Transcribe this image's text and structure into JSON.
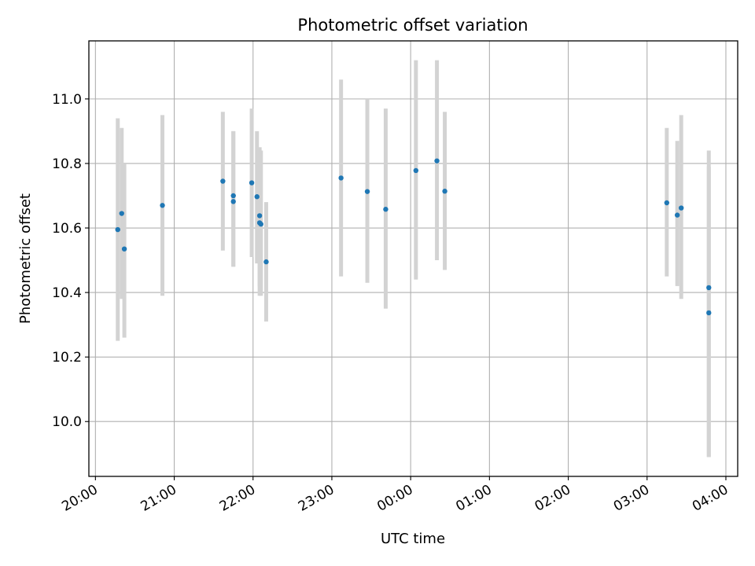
{
  "chart_data": {
    "type": "scatter",
    "title": "Photometric offset variation",
    "xlabel": "UTC time",
    "ylabel": "Photometric offset",
    "x_axis": {
      "kind": "time",
      "range": [
        "19:55",
        "04:09"
      ],
      "ticks": [
        "20:00",
        "21:00",
        "22:00",
        "23:00",
        "00:00",
        "01:00",
        "02:00",
        "03:00",
        "04:00"
      ]
    },
    "y_axis": {
      "range": [
        9.83,
        11.18
      ],
      "ticks": [
        "10.0",
        "10.2",
        "10.4",
        "10.6",
        "10.8",
        "11.0"
      ]
    },
    "grid": true,
    "colors": {
      "points": "#1f77b4",
      "errorbars": "#d3d3d3",
      "grid": "#b0b0b0"
    },
    "points": [
      {
        "x": "20:17",
        "y": 10.595,
        "ylow": 10.25,
        "yhigh": 10.94
      },
      {
        "x": "20:20",
        "y": 10.645,
        "ylow": 10.38,
        "yhigh": 10.91
      },
      {
        "x": "20:22",
        "y": 10.535,
        "ylow": 10.26,
        "yhigh": 10.8
      },
      {
        "x": "20:51",
        "y": 10.67,
        "ylow": 10.39,
        "yhigh": 10.95
      },
      {
        "x": "21:37",
        "y": 10.745,
        "ylow": 10.53,
        "yhigh": 10.96
      },
      {
        "x": "21:45",
        "y": 10.7,
        "ylow": 10.48,
        "yhigh": 10.9
      },
      {
        "x": "21:45",
        "y": 10.682,
        "ylow": 10.48,
        "yhigh": 10.9
      },
      {
        "x": "21:59",
        "y": 10.74,
        "ylow": 10.51,
        "yhigh": 10.97
      },
      {
        "x": "22:03",
        "y": 10.697,
        "ylow": 10.49,
        "yhigh": 10.9
      },
      {
        "x": "22:05",
        "y": 10.638,
        "ylow": 10.42,
        "yhigh": 10.85
      },
      {
        "x": "22:05",
        "y": 10.616,
        "ylow": 10.39,
        "yhigh": 10.85
      },
      {
        "x": "22:06",
        "y": 10.612,
        "ylow": 10.39,
        "yhigh": 10.84
      },
      {
        "x": "22:10",
        "y": 10.495,
        "ylow": 10.31,
        "yhigh": 10.68
      },
      {
        "x": "23:07",
        "y": 10.755,
        "ylow": 10.45,
        "yhigh": 11.06
      },
      {
        "x": "23:27",
        "y": 10.713,
        "ylow": 10.43,
        "yhigh": 11.0
      },
      {
        "x": "23:41",
        "y": 10.658,
        "ylow": 10.35,
        "yhigh": 10.97
      },
      {
        "x": "00:04",
        "y": 10.778,
        "ylow": 10.44,
        "yhigh": 11.12
      },
      {
        "x": "00:20",
        "y": 10.808,
        "ylow": 10.5,
        "yhigh": 11.12
      },
      {
        "x": "00:26",
        "y": 10.714,
        "ylow": 10.47,
        "yhigh": 10.96
      },
      {
        "x": "03:15",
        "y": 10.678,
        "ylow": 10.45,
        "yhigh": 10.91
      },
      {
        "x": "03:23",
        "y": 10.64,
        "ylow": 10.42,
        "yhigh": 10.87
      },
      {
        "x": "03:26",
        "y": 10.662,
        "ylow": 10.38,
        "yhigh": 10.95
      },
      {
        "x": "03:47",
        "y": 10.415,
        "ylow": 9.89,
        "yhigh": 10.84
      },
      {
        "x": "03:47",
        "y": 10.337,
        "ylow": 9.89,
        "yhigh": 10.79
      }
    ]
  }
}
